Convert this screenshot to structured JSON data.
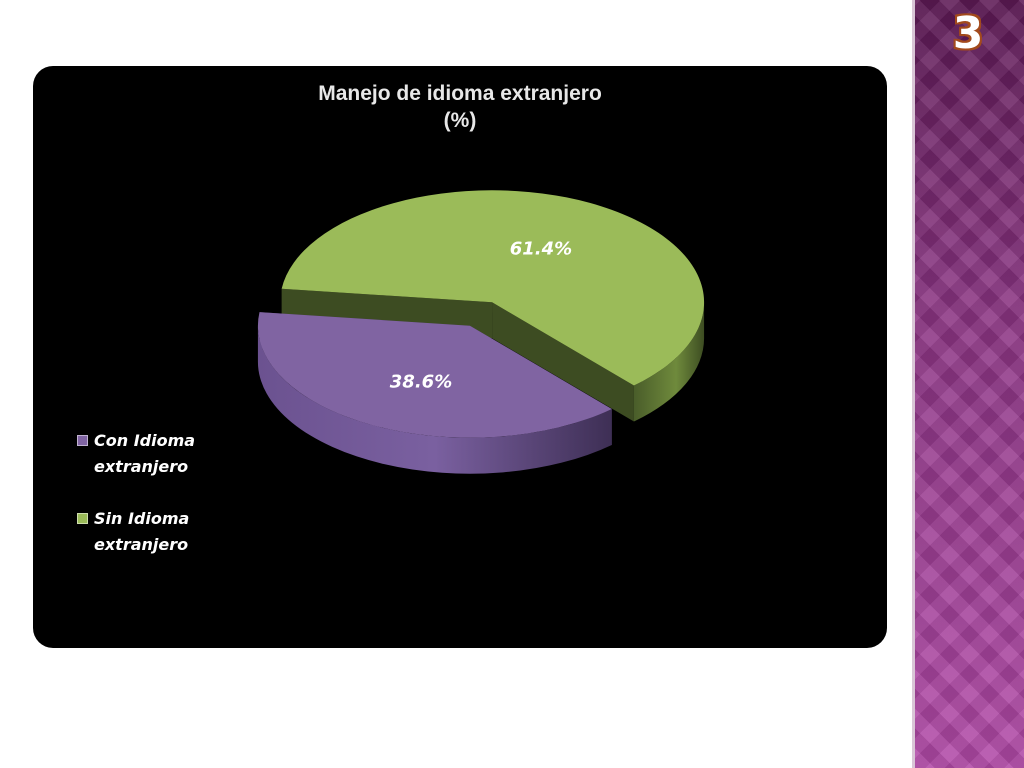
{
  "slide": {
    "number": "3"
  },
  "colors": {
    "background": "#ffffff",
    "panel": "#000000",
    "side_band": "#9c3f93",
    "slice_con": "#8064a2",
    "slice_sin": "#9bbb59"
  },
  "chart_data": {
    "type": "pie",
    "style": "3d-exploded",
    "title": "Manejo de idioma extranjero (%)",
    "title_lines": [
      "Manejo de idioma extranjero",
      "(%)"
    ],
    "slices": [
      {
        "name": "Con Idioma extranjero",
        "value": 38.6,
        "label": "38.6%",
        "color": "#8064a2"
      },
      {
        "name": "Sin Idioma extranjero",
        "value": 61.4,
        "label": "61.4%",
        "color": "#9bbb59"
      }
    ],
    "legend": {
      "position": "left",
      "entries": [
        {
          "label": "Con Idioma extranjero",
          "color": "#8064a2"
        },
        {
          "label": "Sin Idioma extranjero",
          "color": "#9bbb59"
        }
      ]
    }
  }
}
